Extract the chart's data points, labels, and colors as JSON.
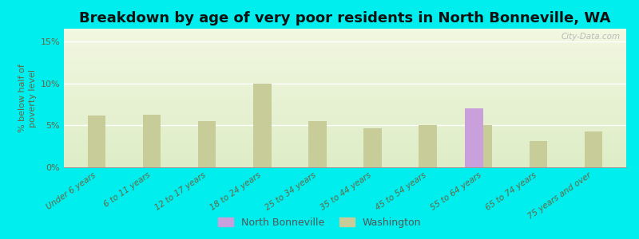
{
  "title": "Breakdown by age of very poor residents in North Bonneville, WA",
  "ylabel": "% below half of\npoverty level",
  "categories": [
    "Under 6 years",
    "6 to 11 years",
    "12 to 17 years",
    "18 to 24 years",
    "25 to 34 years",
    "35 to 44 years",
    "45 to 54 years",
    "55 to 64 years",
    "65 to 74 years",
    "75 years and over"
  ],
  "north_bonneville": [
    0,
    0,
    0,
    0,
    0,
    0,
    0,
    7.0,
    0,
    0
  ],
  "washington": [
    6.2,
    6.3,
    5.5,
    10.0,
    5.5,
    4.6,
    5.0,
    5.0,
    3.1,
    4.3
  ],
  "nb_color": "#c9a0dc",
  "wa_color": "#c8cc99",
  "background_color": "#00eeee",
  "ylim": [
    0,
    16.5
  ],
  "yticks": [
    0,
    5,
    10,
    15
  ],
  "ytick_labels": [
    "0%",
    "5%",
    "10%",
    "15%"
  ],
  "title_fontsize": 13,
  "legend_nb": "North Bonneville",
  "legend_wa": "Washington",
  "bar_width": 0.32
}
